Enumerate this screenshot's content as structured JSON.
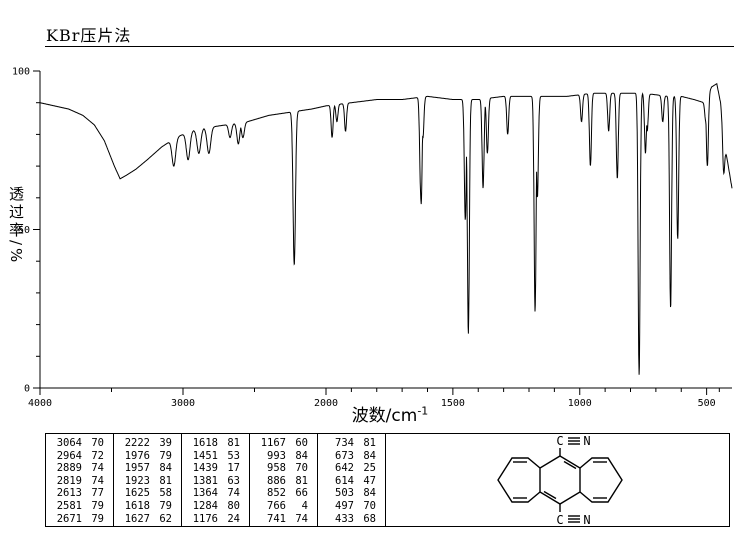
{
  "title": "KBr压片法",
  "chart_data": {
    "type": "line",
    "title": "KBr压片法",
    "xlabel": "波数/cm⁻¹",
    "xlabel_main": "波数/cm",
    "xlabel_sup": "-1",
    "ylabel": "透过率/%",
    "xlim": [
      4000,
      400
    ],
    "x_axis_reversed": true,
    "x_scale_break_at": 2000,
    "ylim": [
      0,
      100
    ],
    "x_ticks_major": [
      4000,
      3000,
      2000,
      1500,
      1000,
      500
    ],
    "x_ticks_minor": [
      3500,
      2500,
      1900,
      1800,
      1700,
      1600,
      1400,
      1300,
      1200,
      1100,
      900,
      800,
      700,
      600,
      450
    ],
    "y_ticks_major": [
      0,
      50,
      100
    ],
    "y_ticks_minor": [
      10,
      20,
      30,
      40,
      60,
      70,
      80,
      90
    ],
    "grid": false,
    "legend": null,
    "peaks": [
      [
        3064,
        70
      ],
      [
        2964,
        72
      ],
      [
        2889,
        74
      ],
      [
        2819,
        74
      ],
      [
        2613,
        77
      ],
      [
        2581,
        79
      ],
      [
        2671,
        79
      ],
      [
        2222,
        39
      ],
      [
        1976,
        79
      ],
      [
        1957,
        84
      ],
      [
        1923,
        81
      ],
      [
        1625,
        58
      ],
      [
        1618,
        79
      ],
      [
        1627,
        62
      ],
      [
        1618,
        81
      ],
      [
        1451,
        53
      ],
      [
        1439,
        17
      ],
      [
        1381,
        63
      ],
      [
        1364,
        74
      ],
      [
        1284,
        80
      ],
      [
        1176,
        24
      ],
      [
        1167,
        60
      ],
      [
        993,
        84
      ],
      [
        958,
        70
      ],
      [
        886,
        81
      ],
      [
        852,
        66
      ],
      [
        766,
        4
      ],
      [
        741,
        74
      ],
      [
        734,
        81
      ],
      [
        673,
        84
      ],
      [
        642,
        25
      ],
      [
        614,
        47
      ],
      [
        503,
        84
      ],
      [
        497,
        70
      ],
      [
        433,
        68
      ]
    ],
    "baseline": [
      [
        4000,
        90
      ],
      [
        3900,
        89
      ],
      [
        3800,
        88
      ],
      [
        3700,
        86
      ],
      [
        3620,
        83
      ],
      [
        3550,
        78
      ],
      [
        3480,
        70
      ],
      [
        3440,
        66
      ],
      [
        3400,
        67
      ],
      [
        3330,
        69
      ],
      [
        3250,
        72
      ],
      [
        3150,
        76
      ],
      [
        3050,
        79
      ],
      [
        2950,
        81
      ],
      [
        2850,
        82
      ],
      [
        2700,
        83
      ],
      [
        2550,
        84
      ],
      [
        2400,
        86
      ],
      [
        2250,
        87
      ],
      [
        2100,
        88
      ],
      [
        2000,
        89
      ],
      [
        1900,
        90
      ],
      [
        1800,
        91
      ],
      [
        1700,
        91
      ],
      [
        1600,
        92
      ],
      [
        1500,
        91
      ],
      [
        1400,
        91
      ],
      [
        1300,
        92
      ],
      [
        1250,
        92
      ],
      [
        1150,
        92
      ],
      [
        1050,
        92
      ],
      [
        950,
        93
      ],
      [
        850,
        93
      ],
      [
        750,
        93
      ],
      [
        650,
        92
      ],
      [
        600,
        92
      ],
      [
        550,
        91
      ],
      [
        510,
        90
      ],
      [
        480,
        95
      ],
      [
        460,
        96
      ],
      [
        445,
        90
      ],
      [
        425,
        75
      ],
      [
        400,
        63
      ]
    ],
    "line_color": "#000000"
  },
  "table": {
    "columns": 5,
    "rows_per_column": 7,
    "cell_format": "wavenumber %T"
  },
  "molecule": {
    "c_label": "C",
    "n_label": "N"
  }
}
